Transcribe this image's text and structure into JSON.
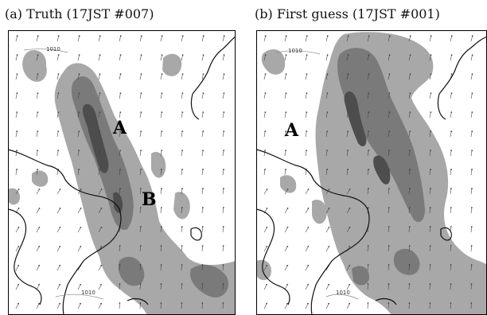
{
  "panels": [
    {
      "title": "(a) Truth (17JST #007)",
      "points": [
        {
          "label": "A"
        },
        {
          "label": "B"
        }
      ],
      "contour_labels": [
        "1010",
        "1010"
      ]
    },
    {
      "title": "(b) First guess (17JST #001)",
      "points": [
        {
          "label": "A"
        }
      ],
      "contour_labels": [
        "1010",
        "1010"
      ]
    }
  ],
  "colors": {
    "shade_light": "#a8a8a8",
    "shade_mid": "#7a7a7a",
    "shade_dark": "#4d4d4d",
    "coast": "#111111",
    "arrow": "#444444"
  }
}
